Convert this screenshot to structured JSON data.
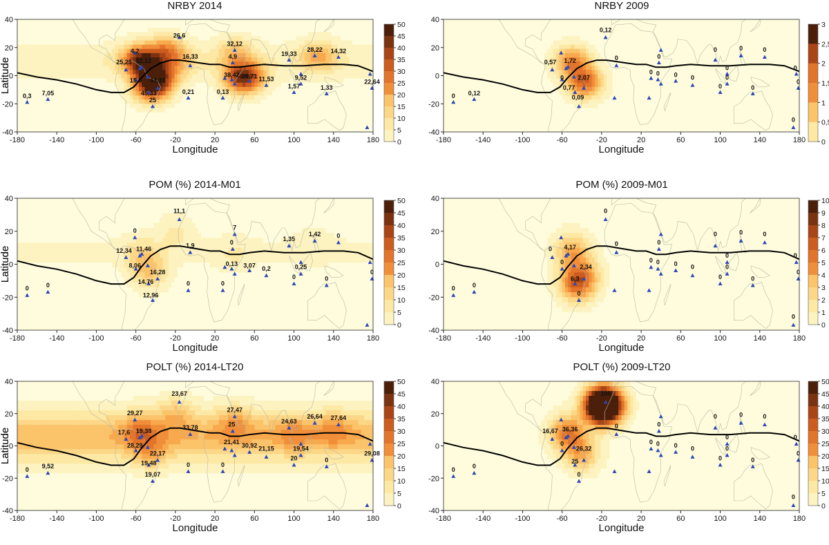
{
  "figure": {
    "axis_xlabel": "Longitude",
    "axis_ylabel": "Latitude",
    "x_ticks": [
      "-180",
      "-140",
      "-100",
      "-60",
      "-20",
      "20",
      "60",
      "100",
      "140",
      "180"
    ],
    "y_ticks": [
      "40",
      "20",
      "0",
      "-20",
      "-40"
    ]
  },
  "colors": {
    "scale": [
      "#fefcdc",
      "#fdf3c0",
      "#fde8a4",
      "#fcd787",
      "#fbc36a",
      "#f8a94d",
      "#f08e39",
      "#e3742b",
      "#cc5c1f",
      "#a94516",
      "#7a3211",
      "#4b1f0a"
    ],
    "station_marker": "#2d47b6",
    "land_outline": "#b8b8a8",
    "itcz_line": "#000000"
  },
  "stations": [
    [
      -170,
      -19
    ],
    [
      -149,
      -17
    ],
    [
      -70,
      4
    ],
    [
      -61,
      16
    ],
    [
      -56,
      5
    ],
    [
      -54,
      6
    ],
    [
      -60,
      -3
    ],
    [
      -48,
      -1
    ],
    [
      -47,
      -12
    ],
    [
      -38,
      -9
    ],
    [
      -43,
      -22
    ],
    [
      -16,
      27
    ],
    [
      -5,
      7
    ],
    [
      -7,
      -16
    ],
    [
      28,
      -16
    ],
    [
      30,
      -2
    ],
    [
      38,
      9
    ],
    [
      40,
      18
    ],
    [
      37,
      -3
    ],
    [
      40,
      -6
    ],
    [
      55,
      -4
    ],
    [
      72,
      -7
    ],
    [
      95,
      11
    ],
    [
      100,
      -12
    ],
    [
      107,
      -6
    ],
    [
      121,
      14
    ],
    [
      107,
      1
    ],
    [
      133,
      -13
    ],
    [
      145,
      13
    ],
    [
      174,
      -37
    ],
    [
      177,
      1
    ],
    [
      179,
      -9
    ]
  ],
  "chart_data": [
    {
      "panel": "top-left",
      "type": "heatmap",
      "title": "NRBY 2014",
      "xlim": [
        -180,
        180
      ],
      "ylim": [
        -40,
        40
      ],
      "colorbar_ticks": [
        "50",
        "45",
        "40",
        "35",
        "30",
        "25",
        "20",
        "15",
        "10",
        "5",
        "0"
      ],
      "hotspots": [
        [
          -50,
          8,
          30
        ],
        [
          -45,
          -8,
          40
        ],
        [
          -30,
          18,
          22
        ],
        [
          -35,
          -2,
          25
        ],
        [
          45,
          -2,
          28
        ],
        [
          55,
          -1,
          22
        ],
        [
          40,
          17,
          14
        ],
        [
          125,
          14,
          18
        ],
        [
          -60,
          12,
          20
        ],
        [
          -15,
          10,
          10
        ]
      ],
      "band": {
        "lat": 10,
        "width": 13,
        "value": 6
      },
      "labels": [
        {
          "lon": -16,
          "lat": 27,
          "text": "26,6"
        },
        {
          "lon": -61,
          "lat": 16,
          "text": "4,2"
        },
        {
          "lon": -72,
          "lat": 8,
          "text": "25,25"
        },
        {
          "lon": -52,
          "lat": 9,
          "text": "52,12"
        },
        {
          "lon": -5,
          "lat": 12,
          "text": "16,33"
        },
        {
          "lon": 40,
          "lat": 21,
          "text": "32,12"
        },
        {
          "lon": 38,
          "lat": 12,
          "text": "4,9"
        },
        {
          "lon": 95,
          "lat": 14,
          "text": "19,33"
        },
        {
          "lon": 121,
          "lat": 17,
          "text": "28,22"
        },
        {
          "lon": 145,
          "lat": 16,
          "text": "14,32"
        },
        {
          "lon": -60,
          "lat": -5,
          "text": "15,9"
        },
        {
          "lon": -38,
          "lat": -5,
          "text": "44,31"
        },
        {
          "lon": -47,
          "lat": -14,
          "text": "45,33"
        },
        {
          "lon": -43,
          "lat": -19,
          "text": "25"
        },
        {
          "lon": 37,
          "lat": -1,
          "text": "38,42"
        },
        {
          "lon": 55,
          "lat": -2,
          "text": "29,71"
        },
        {
          "lon": 72,
          "lat": -4,
          "text": "11,53"
        },
        {
          "lon": 107,
          "lat": -3,
          "text": "9,52"
        },
        {
          "lon": 100,
          "lat": -9,
          "text": "1,57"
        },
        {
          "lon": 133,
          "lat": -10,
          "text": "1,33"
        },
        {
          "lon": -7,
          "lat": -13,
          "text": "0,21"
        },
        {
          "lon": 28,
          "lat": -13,
          "text": "0,13"
        },
        {
          "lon": -170,
          "lat": -16,
          "text": "0,3"
        },
        {
          "lon": -149,
          "lat": -14,
          "text": "7,05"
        },
        {
          "lon": 179,
          "lat": -6,
          "text": "22,64"
        }
      ]
    },
    {
      "panel": "top-right",
      "type": "heatmap",
      "title": "NRBY 2009",
      "xlim": [
        -180,
        180
      ],
      "ylim": [
        -40,
        40
      ],
      "colorbar_ticks": [
        "3",
        "2,5",
        "2",
        "1,5",
        "1",
        "0,5",
        "0"
      ],
      "hotspots": [
        [
          -50,
          10,
          1.7
        ],
        [
          -37,
          -5,
          2.0
        ]
      ],
      "band": {
        "lat": 0,
        "width": 0,
        "value": 0
      },
      "labels": [
        {
          "lon": -16,
          "lat": 31,
          "text": "0,12"
        },
        {
          "lon": -72,
          "lat": 8,
          "text": "0,57"
        },
        {
          "lon": -52,
          "lat": 9,
          "text": "1,72"
        },
        {
          "lon": -5,
          "lat": 11,
          "text": "0"
        },
        {
          "lon": 38,
          "lat": 12,
          "text": "0"
        },
        {
          "lon": 95,
          "lat": 17,
          "text": "0"
        },
        {
          "lon": 121,
          "lat": 18,
          "text": "0"
        },
        {
          "lon": 145,
          "lat": 17,
          "text": "0"
        },
        {
          "lon": -60,
          "lat": -3,
          "text": "0"
        },
        {
          "lon": -38,
          "lat": -3,
          "text": "2,07"
        },
        {
          "lon": -53,
          "lat": -10,
          "text": "0,77"
        },
        {
          "lon": -44,
          "lat": -17,
          "text": "0,09"
        },
        {
          "lon": 30,
          "lat": 1,
          "text": "0"
        },
        {
          "lon": 37,
          "lat": 0,
          "text": "0"
        },
        {
          "lon": 55,
          "lat": -1,
          "text": "0"
        },
        {
          "lon": 72,
          "lat": -3,
          "text": "0"
        },
        {
          "lon": 107,
          "lat": 4,
          "text": "0"
        },
        {
          "lon": 107,
          "lat": -3,
          "text": "0"
        },
        {
          "lon": 100,
          "lat": -9,
          "text": "0"
        },
        {
          "lon": 133,
          "lat": -10,
          "text": "0"
        },
        {
          "lon": 176,
          "lat": 4,
          "text": "0"
        },
        {
          "lon": 179,
          "lat": -6,
          "text": "0"
        },
        {
          "lon": 174,
          "lat": -33,
          "text": "0"
        },
        {
          "lon": -170,
          "lat": -16,
          "text": "0"
        },
        {
          "lon": -149,
          "lat": -14,
          "text": "0,12"
        }
      ]
    },
    {
      "panel": "middle-left",
      "type": "heatmap",
      "title": "POM (%) 2014-M01",
      "xlim": [
        -180,
        180
      ],
      "ylim": [
        -40,
        40
      ],
      "colorbar_ticks": [
        "50",
        "45",
        "40",
        "35",
        "30",
        "25",
        "20",
        "15",
        "10",
        "5",
        "0"
      ],
      "hotspots": [
        [
          -45,
          -5,
          14
        ],
        [
          -55,
          5,
          10
        ],
        [
          -20,
          20,
          7
        ],
        [
          40,
          5,
          5
        ],
        [
          120,
          12,
          4
        ]
      ],
      "band": {
        "lat": 8,
        "width": 11,
        "value": 3
      },
      "labels": [
        {
          "lon": -16,
          "lat": 31,
          "text": "11,1"
        },
        {
          "lon": -61,
          "lat": 19,
          "text": "0"
        },
        {
          "lon": -72,
          "lat": 7,
          "text": "12,34"
        },
        {
          "lon": -52,
          "lat": 8,
          "text": "11,46"
        },
        {
          "lon": -5,
          "lat": 10,
          "text": "1,9"
        },
        {
          "lon": 40,
          "lat": 21,
          "text": "7"
        },
        {
          "lon": 37,
          "lat": 12,
          "text": "0"
        },
        {
          "lon": 95,
          "lat": 14,
          "text": "1,35"
        },
        {
          "lon": 121,
          "lat": 17,
          "text": "1,42"
        },
        {
          "lon": 145,
          "lat": 16,
          "text": "0"
        },
        {
          "lon": -61,
          "lat": -2,
          "text": "8,06"
        },
        {
          "lon": -38,
          "lat": -6,
          "text": "16,28"
        },
        {
          "lon": -50,
          "lat": -12,
          "text": "14,76"
        },
        {
          "lon": -45,
          "lat": -20,
          "text": "12,96"
        },
        {
          "lon": 37,
          "lat": -1,
          "text": "0,13"
        },
        {
          "lon": 55,
          "lat": -2,
          "text": "3,07"
        },
        {
          "lon": 72,
          "lat": -4,
          "text": "0,2"
        },
        {
          "lon": 107,
          "lat": -3,
          "text": "0,25"
        },
        {
          "lon": 100,
          "lat": -9,
          "text": "0"
        },
        {
          "lon": 133,
          "lat": -10,
          "text": "0"
        },
        {
          "lon": -7,
          "lat": -13,
          "text": "0"
        },
        {
          "lon": 28,
          "lat": -13,
          "text": "0"
        },
        {
          "lon": -170,
          "lat": -16,
          "text": "0"
        },
        {
          "lon": -149,
          "lat": -14,
          "text": "0"
        },
        {
          "lon": 179,
          "lat": -6,
          "text": "0"
        }
      ]
    },
    {
      "panel": "middle-right",
      "type": "heatmap",
      "title": "POM (%) 2009-M01",
      "xlim": [
        -180,
        180
      ],
      "ylim": [
        -40,
        40
      ],
      "colorbar_ticks": [
        "10",
        "9",
        "8",
        "7",
        "6",
        "5",
        "4",
        "3",
        "2",
        "1",
        "0"
      ],
      "hotspots": [
        [
          -50,
          8,
          4.2
        ],
        [
          -45,
          -12,
          6.3
        ],
        [
          -37,
          -5,
          2.3
        ]
      ],
      "band": {
        "lat": 0,
        "width": 0,
        "value": 0
      },
      "labels": [
        {
          "lon": -16,
          "lat": 31,
          "text": "0"
        },
        {
          "lon": -72,
          "lat": 8,
          "text": "0"
        },
        {
          "lon": -52,
          "lat": 9,
          "text": "4,17"
        },
        {
          "lon": -5,
          "lat": 11,
          "text": "0"
        },
        {
          "lon": 38,
          "lat": 12,
          "text": "0"
        },
        {
          "lon": 95,
          "lat": 17,
          "text": "0"
        },
        {
          "lon": 121,
          "lat": 18,
          "text": "0"
        },
        {
          "lon": 145,
          "lat": 17,
          "text": "0"
        },
        {
          "lon": -60,
          "lat": 0,
          "text": "0"
        },
        {
          "lon": -36,
          "lat": -3,
          "text": "2,34"
        },
        {
          "lon": -47,
          "lat": -10,
          "text": "6,3"
        },
        {
          "lon": -43,
          "lat": -19,
          "text": "0"
        },
        {
          "lon": 30,
          "lat": 1,
          "text": "0"
        },
        {
          "lon": 37,
          "lat": 0,
          "text": "0"
        },
        {
          "lon": 55,
          "lat": -1,
          "text": "0"
        },
        {
          "lon": 72,
          "lat": -3,
          "text": "0"
        },
        {
          "lon": 107,
          "lat": 4,
          "text": "0"
        },
        {
          "lon": 107,
          "lat": -3,
          "text": "0"
        },
        {
          "lon": 100,
          "lat": -9,
          "text": "0"
        },
        {
          "lon": 133,
          "lat": -10,
          "text": "0"
        },
        {
          "lon": 176,
          "lat": 4,
          "text": "0"
        },
        {
          "lon": 179,
          "lat": -6,
          "text": "0"
        },
        {
          "lon": 174,
          "lat": -33,
          "text": "0"
        },
        {
          "lon": -170,
          "lat": -16,
          "text": "0"
        },
        {
          "lon": -149,
          "lat": -14,
          "text": "0"
        }
      ]
    },
    {
      "panel": "bottom-left",
      "type": "heatmap",
      "title": "POLT (%) 2014-LT20",
      "xlim": [
        -180,
        180
      ],
      "ylim": [
        -40,
        40
      ],
      "colorbar_ticks": [
        "50",
        "45",
        "40",
        "35",
        "30",
        "25",
        "20",
        "15",
        "10",
        "5",
        "0"
      ],
      "hotspots": [
        [
          -55,
          10,
          14
        ],
        [
          -45,
          -5,
          12
        ],
        [
          -20,
          20,
          12
        ],
        [
          40,
          15,
          12
        ],
        [
          100,
          8,
          10
        ],
        [
          140,
          10,
          10
        ]
      ],
      "band": {
        "lat": 6,
        "width": 15,
        "value": 20
      },
      "labels": [
        {
          "lon": -16,
          "lat": 31,
          "text": "23,67"
        },
        {
          "lon": -61,
          "lat": 19,
          "text": "29,27"
        },
        {
          "lon": -72,
          "lat": 7,
          "text": "17,6"
        },
        {
          "lon": -52,
          "lat": 8,
          "text": "19,38"
        },
        {
          "lon": -5,
          "lat": 10,
          "text": "33,78"
        },
        {
          "lon": 40,
          "lat": 21,
          "text": "27,47"
        },
        {
          "lon": 37,
          "lat": 12,
          "text": "25"
        },
        {
          "lon": 95,
          "lat": 14,
          "text": "24,63"
        },
        {
          "lon": 121,
          "lat": 17,
          "text": "26,64"
        },
        {
          "lon": 145,
          "lat": 16,
          "text": "27,64"
        },
        {
          "lon": -61,
          "lat": -1,
          "text": "28,29"
        },
        {
          "lon": -38,
          "lat": -6,
          "text": "22,17"
        },
        {
          "lon": -47,
          "lat": -12,
          "text": "19,48"
        },
        {
          "lon": -43,
          "lat": -19,
          "text": "19,07"
        },
        {
          "lon": 37,
          "lat": 1,
          "text": "21,41"
        },
        {
          "lon": 55,
          "lat": -1,
          "text": "30,92"
        },
        {
          "lon": 72,
          "lat": -3,
          "text": "21,15"
        },
        {
          "lon": 107,
          "lat": -3,
          "text": "19,54"
        },
        {
          "lon": 100,
          "lat": -9,
          "text": "20"
        },
        {
          "lon": 133,
          "lat": -10,
          "text": "0"
        },
        {
          "lon": -7,
          "lat": -13,
          "text": "0"
        },
        {
          "lon": 28,
          "lat": -13,
          "text": "0"
        },
        {
          "lon": -170,
          "lat": -16,
          "text": "0"
        },
        {
          "lon": -149,
          "lat": -14,
          "text": "9,52"
        },
        {
          "lon": 179,
          "lat": -6,
          "text": "29,08"
        }
      ]
    },
    {
      "panel": "bottom-right",
      "type": "heatmap",
      "title": "POLT (%) 2009-LT20",
      "xlim": [
        -180,
        180
      ],
      "ylim": [
        -40,
        40
      ],
      "colorbar_ticks": [
        "50",
        "45",
        "40",
        "35",
        "30",
        "25",
        "20",
        "15",
        "10",
        "5",
        "0"
      ],
      "hotspots": [
        [
          -18,
          25,
          100
        ],
        [
          -55,
          8,
          30
        ],
        [
          -40,
          -5,
          20
        ]
      ],
      "band": {
        "lat": 0,
        "width": 0,
        "value": 0
      },
      "labels": [
        {
          "lon": -16,
          "lat": 31,
          "text": "100"
        },
        {
          "lon": -72,
          "lat": 8,
          "text": "16,67"
        },
        {
          "lon": -52,
          "lat": 9,
          "text": "36,36"
        },
        {
          "lon": -5,
          "lat": 11,
          "text": "0"
        },
        {
          "lon": 38,
          "lat": 12,
          "text": "0"
        },
        {
          "lon": 95,
          "lat": 17,
          "text": "0"
        },
        {
          "lon": 121,
          "lat": 18,
          "text": "0"
        },
        {
          "lon": 145,
          "lat": 17,
          "text": "0"
        },
        {
          "lon": -60,
          "lat": 0,
          "text": "0"
        },
        {
          "lon": -38,
          "lat": -3,
          "text": "26,32"
        },
        {
          "lon": -47,
          "lat": -11,
          "text": "25"
        },
        {
          "lon": -43,
          "lat": -19,
          "text": "0"
        },
        {
          "lon": 30,
          "lat": 1,
          "text": "0"
        },
        {
          "lon": 37,
          "lat": 0,
          "text": "0"
        },
        {
          "lon": 55,
          "lat": -1,
          "text": "0"
        },
        {
          "lon": 72,
          "lat": -3,
          "text": "0"
        },
        {
          "lon": 107,
          "lat": 4,
          "text": "0"
        },
        {
          "lon": 107,
          "lat": -3,
          "text": "0"
        },
        {
          "lon": 100,
          "lat": -9,
          "text": "0"
        },
        {
          "lon": 133,
          "lat": -10,
          "text": "0"
        },
        {
          "lon": 176,
          "lat": 4,
          "text": "0"
        },
        {
          "lon": 179,
          "lat": -6,
          "text": "0"
        },
        {
          "lon": 174,
          "lat": -33,
          "text": "0"
        },
        {
          "lon": -170,
          "lat": -16,
          "text": "0"
        },
        {
          "lon": -149,
          "lat": -14,
          "text": "0"
        }
      ]
    }
  ]
}
